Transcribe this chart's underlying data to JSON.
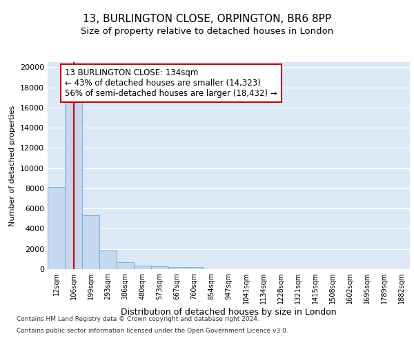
{
  "title1": "13, BURLINGTON CLOSE, ORPINGTON, BR6 8PP",
  "title2": "Size of property relative to detached houses in London",
  "xlabel": "Distribution of detached houses by size in London",
  "ylabel": "Number of detached properties",
  "categories": [
    "12sqm",
    "106sqm",
    "199sqm",
    "293sqm",
    "386sqm",
    "480sqm",
    "573sqm",
    "667sqm",
    "760sqm",
    "854sqm",
    "947sqm",
    "1041sqm",
    "1134sqm",
    "1228sqm",
    "1321sqm",
    "1415sqm",
    "1508sqm",
    "1602sqm",
    "1695sqm",
    "1789sqm",
    "1882sqm"
  ],
  "values": [
    8100,
    16600,
    5300,
    1850,
    700,
    350,
    280,
    220,
    190,
    0,
    0,
    0,
    0,
    0,
    0,
    0,
    0,
    0,
    0,
    0,
    0
  ],
  "bar_color": "#c5d8f0",
  "bar_edge_color": "#6aaad4",
  "annotation_text": "13 BURLINGTON CLOSE: 134sqm\n← 43% of detached houses are smaller (14,323)\n56% of semi-detached houses are larger (18,432) →",
  "annotation_box_facecolor": "#ffffff",
  "annotation_box_edgecolor": "#cc0000",
  "vline_color": "#cc0000",
  "vline_x": 1.0,
  "ylim": [
    0,
    20500
  ],
  "yticks": [
    0,
    2000,
    4000,
    6000,
    8000,
    10000,
    12000,
    14000,
    16000,
    18000,
    20000
  ],
  "footer1": "Contains HM Land Registry data © Crown copyright and database right 2024.",
  "footer2": "Contains public sector information licensed under the Open Government Licence v3.0.",
  "plot_bg_color": "#dce8f5",
  "title1_fontsize": 11,
  "title2_fontsize": 9.5,
  "grid_color": "#ffffff",
  "tick_label_fontsize": 7,
  "ylabel_fontsize": 8,
  "xlabel_fontsize": 9,
  "annotation_fontsize": 8.5,
  "footer_fontsize": 6.5
}
